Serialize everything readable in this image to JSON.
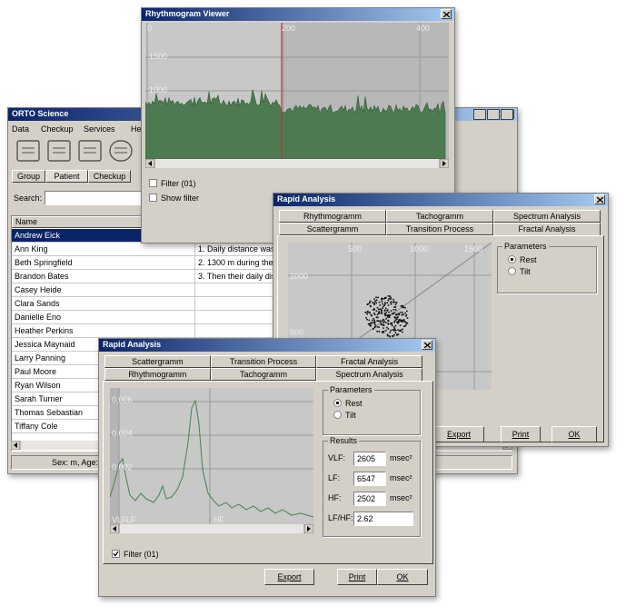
{
  "main_window": {
    "title": "ORTO Science",
    "menu": [
      "Data",
      "Checkup",
      "Services",
      "Help"
    ],
    "tabs": [
      "Group",
      "Patient",
      "Checkup"
    ],
    "search_label": "Search:",
    "column_header": "Name",
    "patients": [
      "Andrew Eick",
      "Ann King",
      "Beth Springfield",
      "Brandon Bates",
      "Casey Heide",
      "Clara Sands",
      "Danielle Eno",
      "Heather Perkins",
      "Jessica Maynaid",
      "Larry Panning",
      "Paul Moore",
      "Ryan Wilson",
      "Sarah Turner",
      "Thomas Sebastian",
      "Tiffany Cole"
    ],
    "notes": [
      "1. Daily distance was",
      "2. 1300 m during the r",
      "3. Then their daily dist"
    ],
    "status": "Sex: m, Age:"
  },
  "rhythmogram_window": {
    "title": "Rhythmogram Viewer",
    "x_labels": [
      "0",
      "200",
      "400"
    ],
    "y_labels": [
      "1500",
      "1000"
    ],
    "checkboxes": [
      "Filter (01)",
      "Show filter"
    ]
  },
  "scatter_window": {
    "title": "Rapid Analysis",
    "tabs_back": [
      "Rhythmogramm",
      "Tachogramm",
      "Spectrum Analysis"
    ],
    "tabs_front": [
      "Scattergramm",
      "Transition Process",
      "Fractal Analysis"
    ],
    "x_labels": [
      "500",
      "1000",
      "1500"
    ],
    "y_labels": [
      "1000",
      "500"
    ],
    "parameters_label": "Parameters",
    "options": [
      "Rest",
      "Tilt"
    ],
    "buttons": [
      "Export",
      "Print",
      "OK"
    ]
  },
  "spectrum_window": {
    "title": "Rapid Analysis",
    "tabs_back": [
      "Scattergramm",
      "Transition Process",
      "Fractal Analysis"
    ],
    "tabs_front": [
      "Rhythmogramm",
      "Tachogramm",
      "Spectrum Analysis"
    ],
    "y_labels": [
      "0.006",
      "0.004",
      "0.002"
    ],
    "x_labels": [
      "VLF",
      "LF",
      "HF"
    ],
    "parameters_label": "Parameters",
    "options": [
      "Rest",
      "Tilt"
    ],
    "results_label": "Results",
    "results": [
      {
        "label": "VLF:",
        "value": "2605",
        "unit": "msec²"
      },
      {
        "label": "LF:",
        "value": "6547",
        "unit": "msec²"
      },
      {
        "label": "HF:",
        "value": "2502",
        "unit": "msec²"
      },
      {
        "label": "LF/HF:",
        "value": "2.62"
      }
    ],
    "checkbox": "Filter (01)",
    "buttons": [
      "Export",
      "Print",
      "OK"
    ]
  }
}
